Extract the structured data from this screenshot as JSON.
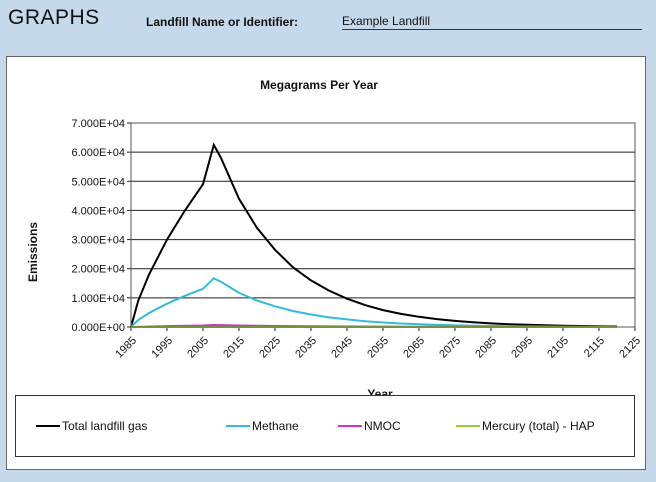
{
  "header": {
    "title": "GRAPHS",
    "identifier_label": "Landfill Name or Identifier:",
    "identifier_value": "Example Landfill"
  },
  "chart_data": {
    "type": "line",
    "title": "Megagrams Per Year",
    "xlabel": "Year",
    "ylabel": "Emissions",
    "xlim": [
      1985,
      2125
    ],
    "ylim": [
      0,
      70000
    ],
    "x_ticks": [
      "1985",
      "1995",
      "2005",
      "2015",
      "2025",
      "2035",
      "2045",
      "2055",
      "2065",
      "2075",
      "2085",
      "2095",
      "2105",
      "2115",
      "2125"
    ],
    "y_ticks": [
      "0.000E+00",
      "1.000E+04",
      "2.000E+04",
      "3.000E+04",
      "4.000E+04",
      "5.000E+04",
      "6.000E+04",
      "7.000E+04"
    ],
    "grid": "horizontal",
    "legend_position": "bottom",
    "series": [
      {
        "name": "Total landfill gas",
        "color": "#000000",
        "x": [
          1985,
          1987,
          1990,
          1995,
          2000,
          2005,
          2008,
          2010,
          2015,
          2020,
          2025,
          2030,
          2035,
          2040,
          2045,
          2050,
          2055,
          2060,
          2065,
          2070,
          2075,
          2080,
          2085,
          2090,
          2095,
          2100,
          2105,
          2110,
          2115,
          2120
        ],
        "y": [
          0,
          9000,
          18000,
          30000,
          40000,
          49000,
          62500,
          58000,
          44000,
          34000,
          26500,
          20500,
          16000,
          12500,
          9700,
          7500,
          5800,
          4500,
          3500,
          2700,
          2100,
          1600,
          1250,
          970,
          750,
          580,
          450,
          350,
          270,
          210
        ]
      },
      {
        "name": "Methane",
        "color": "#33bbdd",
        "x": [
          1985,
          1987,
          1990,
          1995,
          2000,
          2005,
          2008,
          2010,
          2015,
          2020,
          2025,
          2030,
          2035,
          2040,
          2045,
          2050,
          2055,
          2060,
          2065,
          2070,
          2075,
          2080,
          2085,
          2090,
          2095,
          2100,
          2105,
          2110,
          2115,
          2120
        ],
        "y": [
          0,
          2400,
          4800,
          8000,
          10700,
          13100,
          16700,
          15500,
          11700,
          9100,
          7100,
          5500,
          4300,
          3300,
          2600,
          2000,
          1550,
          1200,
          930,
          720,
          560,
          430,
          330,
          260,
          200,
          155,
          120,
          93,
          72,
          56
        ]
      },
      {
        "name": "NMOC",
        "color": "#cc33cc",
        "x": [
          1985,
          1995,
          2005,
          2008,
          2015,
          2025,
          2035,
          2045,
          2055,
          2065,
          2075,
          2085,
          2095,
          2105,
          2115,
          2120
        ],
        "y": [
          0,
          300,
          500,
          700,
          500,
          350,
          250,
          180,
          130,
          90,
          60,
          40,
          30,
          20,
          15,
          10
        ]
      },
      {
        "name": "Mercury (total) - HAP",
        "color": "#99cc33",
        "x": [
          1985,
          2008,
          2035,
          2060,
          2090,
          2120
        ],
        "y": [
          0,
          2,
          1,
          0.5,
          0.2,
          0.1
        ]
      }
    ]
  }
}
